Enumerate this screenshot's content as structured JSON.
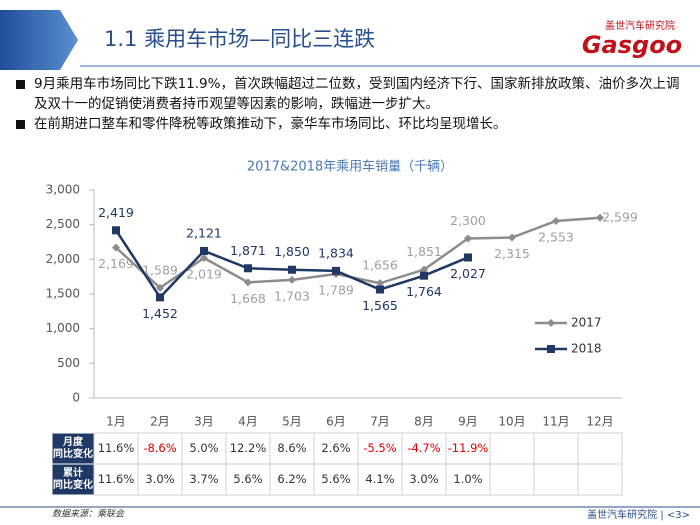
{
  "header": {
    "title": "1.1 乘用车市场—同比三连跌",
    "logo_cn": "盖世汽车研究院",
    "logo_en": "Gasgoo"
  },
  "bullets": [
    "9月乘用车市场同比下跌11.9%，首次跌幅超过二位数，受到国内经济下行、国家新排放政策、油价多次上调及双十一的促销使消费者持币观望等因素的影响，跌幅进一步扩大。",
    "在前期进口整车和零件降税等政策推动下，豪华车市场同比、环比均呈现增长。"
  ],
  "chart_data": {
    "type": "line",
    "title": "2017&2018年乘用车销量（千辆）",
    "categories": [
      "1月",
      "2月",
      "3月",
      "4月",
      "5月",
      "6月",
      "7月",
      "8月",
      "9月",
      "10月",
      "11月",
      "12月"
    ],
    "series": [
      {
        "name": "2017",
        "color": "#8c8c8c",
        "marker": "diamond",
        "values": [
          2169,
          1589,
          2019,
          1668,
          1703,
          1789,
          1656,
          1851,
          2300,
          2315,
          2553,
          2599
        ],
        "value_labels": [
          "2,169",
          "1,589",
          "2,019",
          "1,668",
          "1,703",
          "1,789",
          "1,656",
          "1,851",
          "2,300",
          "2,315",
          "2,553",
          "2,599"
        ]
      },
      {
        "name": "2018",
        "color": "#1f3864",
        "marker": "square",
        "values": [
          2419,
          1452,
          2121,
          1871,
          1850,
          1834,
          1565,
          1764,
          2027,
          null,
          null,
          null
        ],
        "value_labels": [
          "2,419",
          "1,452",
          "2,121",
          "1,871",
          "1,850",
          "1,834",
          "1,565",
          "1,764",
          "2,027",
          null,
          null,
          null
        ]
      }
    ],
    "ylim": [
      0,
      3000
    ],
    "yticks": [
      0,
      500,
      {
        "value": 1000,
        "label": "1,000"
      },
      {
        "value": 1500,
        "label": "1,500"
      },
      {
        "value": 2000,
        "label": "2,000"
      },
      {
        "value": 2500,
        "label": "2,500"
      },
      {
        "value": 3000,
        "label": "3,000"
      }
    ],
    "grid": false
  },
  "table": {
    "rows": [
      {
        "header": [
          "月度",
          "同比变化"
        ],
        "cells": [
          "11.6%",
          "-8.6%",
          "5.0%",
          "12.2%",
          "8.6%",
          "2.6%",
          "-5.5%",
          "-4.7%",
          "-11.9%"
        ]
      },
      {
        "header": [
          "累计",
          "同比变化"
        ],
        "cells": [
          "11.6%",
          "3.0%",
          "3.7%",
          "5.6%",
          "6.2%",
          "5.6%",
          "4.1%",
          "3.0%",
          "1.0%"
        ]
      }
    ]
  },
  "footer": {
    "source": "数据来源：乘联会",
    "org": "盖世汽车研究院 | <3>"
  }
}
